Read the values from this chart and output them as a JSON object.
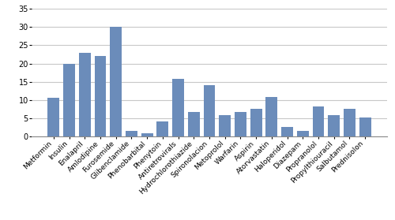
{
  "categories": [
    "Metformin",
    "Insulin",
    "Enalapril",
    "Amlodipine",
    "Furosemide",
    "Glibenclamide",
    "Phenobarbital",
    "Phenytoin",
    "Antiretrovirals",
    "Hydrochlorothiazide",
    "Spironolacion",
    "Metoprolol",
    "Warfarin",
    "Aspirin",
    "Atorvastatin",
    "Haloperidol",
    "Diazepam",
    "Propranolol",
    "Propylthiouracil",
    "Salbutamol",
    "Prednisolon"
  ],
  "values": [
    10.7,
    20,
    23,
    22,
    30,
    1.6,
    0.8,
    4.2,
    15.7,
    6.6,
    14,
    5.9,
    6.6,
    7.5,
    10.8,
    2.5,
    1.6,
    8.3,
    5.9,
    7.5,
    5.1
  ],
  "bar_color": "#6b8cba",
  "ylim": [
    0,
    35
  ],
  "yticks": [
    0,
    5,
    10,
    15,
    20,
    25,
    30,
    35
  ],
  "background_color": "#ffffff",
  "grid_color": "#c8c8c8",
  "tick_fontsize": 6.5,
  "ylabel_fontsize": 7
}
